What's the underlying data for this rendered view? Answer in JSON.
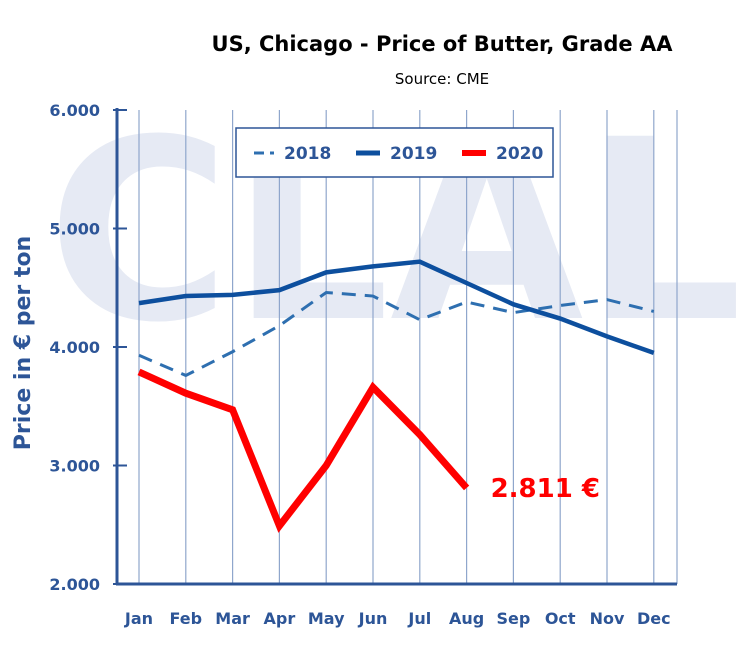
{
  "chart_data": {
    "type": "line",
    "title": "US, Chicago - Price of Butter, Grade AA",
    "subtitle": "Source: CME",
    "watermark": "CLAL",
    "xlabel": "",
    "ylabel": "Price in € per ton",
    "ylim": [
      2000,
      6000
    ],
    "yticks": [
      2000,
      3000,
      4000,
      5000,
      6000
    ],
    "ytick_labels": [
      "2.000",
      "3.000",
      "4.000",
      "5.000",
      "6.000"
    ],
    "grid": "vertical",
    "legend_position": "top-center",
    "categories": [
      "Jan",
      "Feb",
      "Mar",
      "Apr",
      "May",
      "Jun",
      "Jul",
      "Aug",
      "Sep",
      "Oct",
      "Nov",
      "Dec"
    ],
    "series": [
      {
        "name": "2018",
        "style": "dashed",
        "color": "#2e6fb0",
        "values": [
          3930,
          3760,
          3960,
          4180,
          4460,
          4430,
          4230,
          4380,
          4290,
          4350,
          4400,
          4300
        ]
      },
      {
        "name": "2019",
        "style": "solid",
        "color": "#0d4f9e",
        "values": [
          4370,
          4430,
          4440,
          4480,
          4630,
          4680,
          4720,
          4540,
          4360,
          4240,
          4090,
          3950
        ]
      },
      {
        "name": "2020",
        "style": "solid-thick",
        "color": "#ff0000",
        "values": [
          3790,
          3610,
          3470,
          2490,
          3000,
          3660,
          3260,
          2811,
          null,
          null,
          null,
          null
        ]
      }
    ],
    "annotations": [
      {
        "text": "2.811 €",
        "series": "2020",
        "category": "Aug",
        "color": "#ff0000"
      }
    ]
  }
}
